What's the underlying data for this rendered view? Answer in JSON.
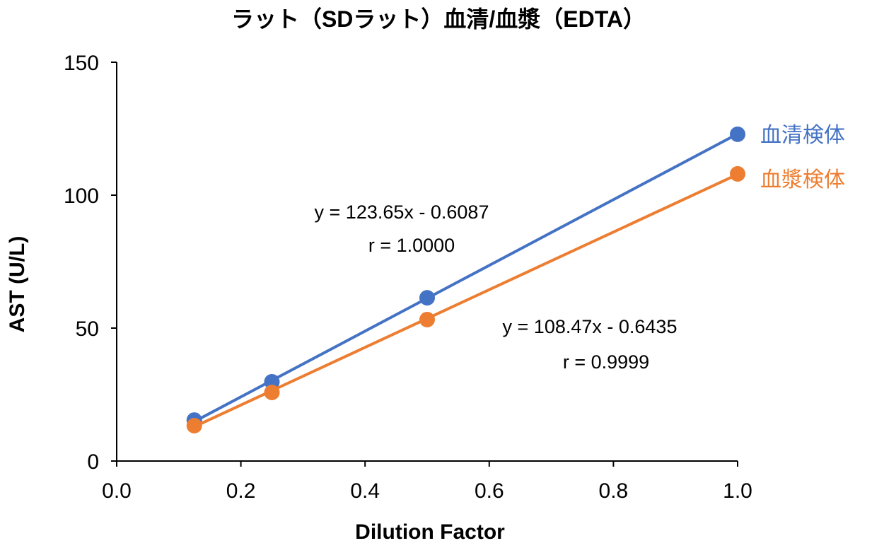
{
  "chart_data": {
    "type": "scatter",
    "title": "ラット（SDラット）血清/血漿（EDTA）",
    "xlabel": "Dilution Factor",
    "ylabel": "AST (U/L)",
    "xlim": [
      0,
      1.0
    ],
    "ylim": [
      0,
      150
    ],
    "xticks": [
      "0.0",
      "0.2",
      "0.4",
      "0.6",
      "0.8",
      "1.0"
    ],
    "yticks": [
      "0",
      "50",
      "100",
      "150"
    ],
    "grid": false,
    "legend": "right, inline labels at line ends",
    "series": [
      {
        "name": "血清検体",
        "color": "#4472C4",
        "x": [
          0.125,
          0.25,
          0.5,
          1.0
        ],
        "y": [
          15.4,
          29.8,
          61.4,
          122.9
        ],
        "trendline": {
          "slope": 123.65,
          "intercept": -0.6087
        },
        "equation": "y = 123.65x - 0.6087",
        "r": "r = 1.0000"
      },
      {
        "name": "血漿検体",
        "color": "#ED7D31",
        "x": [
          0.125,
          0.25,
          0.5,
          1.0
        ],
        "y": [
          13.3,
          25.8,
          53.2,
          108.0
        ],
        "trendline": {
          "slope": 108.47,
          "intercept": -0.6435
        },
        "equation": "y = 108.47x - 0.6435",
        "r": "r = 0.9999"
      }
    ]
  }
}
